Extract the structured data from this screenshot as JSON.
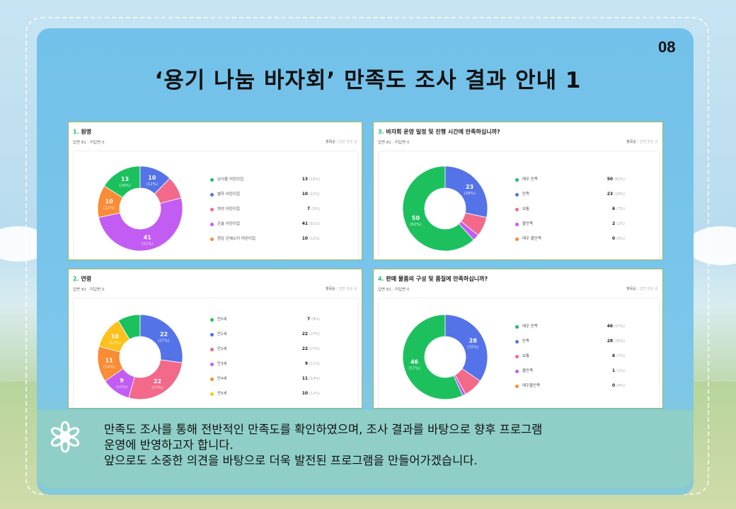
{
  "slide": {
    "title": "‘용기 나눔 바자회’ 만족도 조사 결과 안내 1",
    "page_number": "08",
    "footer_lines": [
      "만족도 조사를 통해 전반적인 만족도를 확인하였으며, 조사 결과를 바탕으로 향후 프로그램",
      "운영에 반영하고자 합니다.",
      "앞으로도 소중한 의견을 바탕으로 더욱 발전된 프로그램을 만들어가겠습니다."
    ],
    "footer_icon": "flower-icon"
  },
  "common": {
    "answered": "답변 81",
    "separator": "·",
    "unanswered": "미답변 0",
    "sort_item": "항목순",
    "sort_divider": "|",
    "sort_most": "답변 많은 순"
  },
  "colors": {
    "green": "#1cc15e",
    "blue": "#5473e8",
    "pink": "#f2698a",
    "purple": "#c25cf3",
    "orange": "#f98c35",
    "yellow": "#fcc21b",
    "border": "#9bbb59"
  },
  "chart_data": [
    {
      "type": "pie",
      "number": "1.",
      "title": "원명",
      "categories": [
        "남서울 어린이집",
        "별하 어린이집",
        "영성 어린이집",
        "은솔 어린이집",
        "청담 은혜소리 어린이집"
      ],
      "values": [
        13,
        10,
        7,
        41,
        10
      ],
      "percents": [
        "16%",
        "12%",
        "9%",
        "51%",
        "12%"
      ],
      "colors": [
        "#1cc15e",
        "#5473e8",
        "#f2698a",
        "#c25cf3",
        "#f98c35"
      ]
    },
    {
      "type": "pie",
      "number": "3.",
      "title": "바자회 운영 일정 및 진행 시간에 만족하십니까?",
      "categories": [
        "매우 만족",
        "만족",
        "보통",
        "불만족",
        "매우 불만족"
      ],
      "values": [
        50,
        23,
        6,
        2,
        0
      ],
      "percents": [
        "62%",
        "28%",
        "7%",
        "2%",
        "0%"
      ],
      "colors": [
        "#1cc15e",
        "#5473e8",
        "#f2698a",
        "#c25cf3",
        "#f98c35"
      ]
    },
    {
      "type": "pie",
      "number": "2.",
      "title": "연령",
      "categories": [
        "만0세",
        "만1세",
        "만2세",
        "만3세",
        "만4세",
        "만5세"
      ],
      "values": [
        7,
        22,
        22,
        9,
        11,
        10
      ],
      "percents": [
        "9%",
        "27%",
        "27%",
        "11%",
        "14%",
        "12%"
      ],
      "colors": [
        "#1cc15e",
        "#5473e8",
        "#f2698a",
        "#c25cf3",
        "#f98c35",
        "#fcc21b"
      ]
    },
    {
      "type": "pie",
      "number": "4.",
      "title": "판매 물품의 구성 및 품질에 만족하십니까?",
      "categories": [
        "매우 만족",
        "만족",
        "보통",
        "불만족",
        "매우불만족"
      ],
      "values": [
        46,
        28,
        6,
        1,
        0
      ],
      "percents": [
        "57%",
        "35%",
        "7%",
        "1%",
        "0%"
      ],
      "colors": [
        "#1cc15e",
        "#5473e8",
        "#f2698a",
        "#c25cf3",
        "#f98c35"
      ]
    }
  ]
}
